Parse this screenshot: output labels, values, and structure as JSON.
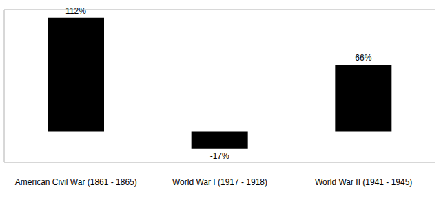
{
  "chart_data": {
    "type": "bar",
    "categories": [
      "American Civil War (1861 - 1865)",
      "World War I (1917 - 1918)",
      "World War II (1941 - 1945)"
    ],
    "values": [
      112,
      -17,
      66
    ],
    "value_labels": [
      "112%",
      "-17%",
      "66%"
    ],
    "data_labels": true,
    "color": "#000000",
    "ylim": [
      -30,
      120
    ],
    "yticks": [
      0
    ],
    "grid": true,
    "tick_labels": "x"
  }
}
